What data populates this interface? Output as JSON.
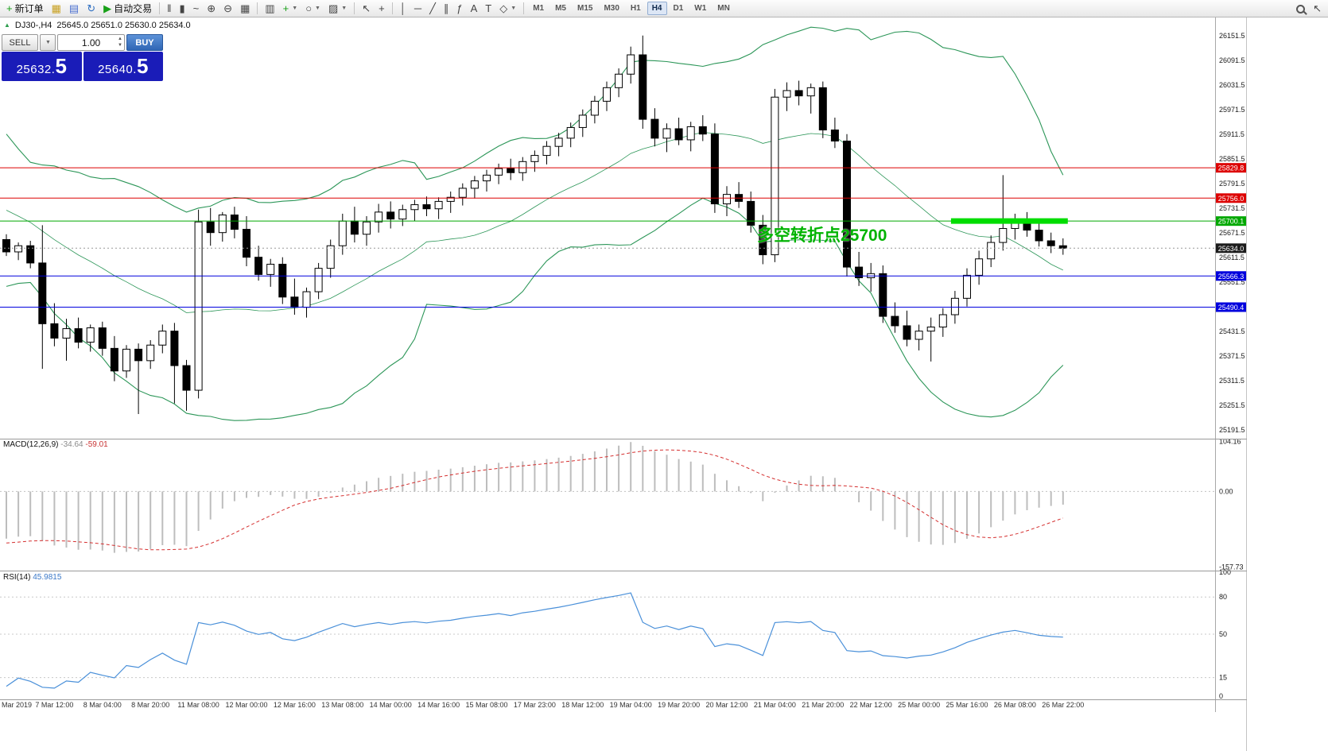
{
  "colors": {
    "red": "#dd0000",
    "green": "#00a800",
    "blue": "#0000dd",
    "black_tag": "#1c1c1c",
    "band": "#2c9658",
    "rsi_line": "#4a90d9",
    "macd_hist": "#bdbdbd",
    "macd_signal": "#d53030",
    "annotation": "#00b300",
    "highlight": "#00dd00",
    "candle_up": "#ffffff",
    "candle_down": "#000000",
    "price_panel": "#1a1cb8",
    "scale_text": "#1a1a1a",
    "axis_text": "#333333",
    "separator": "#9a9a9a"
  },
  "toolbar": {
    "groups": [
      [
        {
          "name": "new-order-button",
          "glyph": "+",
          "glyph_color": "#18a018",
          "label": "新订单"
        },
        {
          "name": "chart-window-icon",
          "glyph": "▦",
          "glyph_color": "#c8a020"
        },
        {
          "name": "profiles-icon",
          "glyph": "▤",
          "glyph_color": "#4a6fd0"
        },
        {
          "name": "refresh-icon",
          "glyph": "↻",
          "glyph_color": "#2e6fc2"
        },
        {
          "name": "autotrading-button",
          "glyph": "▶",
          "glyph_color": "#18a018",
          "label": "自动交易"
        }
      ],
      [
        {
          "name": "bar-chart-icon",
          "glyph": "‖"
        },
        {
          "name": "candlestick-chart-icon",
          "glyph": "▮"
        },
        {
          "name": "line-chart-icon",
          "glyph": "~"
        },
        {
          "name": "zoom-in-icon",
          "glyph": "⊕"
        },
        {
          "name": "zoom-out-icon",
          "glyph": "⊖"
        },
        {
          "name": "tile-windows-icon",
          "glyph": "▦"
        }
      ],
      [
        {
          "name": "arrange-windows-icon",
          "glyph": "▥"
        },
        {
          "name": "indicators-icon",
          "glyph": "+",
          "glyph_color": "#18a018",
          "dropdown": true
        },
        {
          "name": "periods-icon",
          "glyph": "○",
          "dropdown": true
        },
        {
          "name": "templates-icon",
          "glyph": "▨",
          "dropdown": true
        }
      ],
      [
        {
          "name": "cursor-icon",
          "glyph": "↖"
        },
        {
          "name": "crosshair-icon",
          "glyph": "+"
        }
      ],
      [
        {
          "name": "vertical-line-icon",
          "glyph": "│"
        },
        {
          "name": "horizontal-line-icon",
          "glyph": "─"
        },
        {
          "name": "trendline-icon",
          "glyph": "╱"
        },
        {
          "name": "channel-icon",
          "glyph": "∥"
        },
        {
          "name": "fibonacci-icon",
          "glyph": "ƒ"
        },
        {
          "name": "text-icon",
          "glyph": "A"
        },
        {
          "name": "text-label-icon",
          "glyph": "T"
        },
        {
          "name": "shapes-icon",
          "glyph": "◇",
          "dropdown": true
        }
      ]
    ],
    "timeframes": [
      "M1",
      "M5",
      "M15",
      "M30",
      "H1",
      "H4",
      "D1",
      "W1",
      "MN"
    ],
    "active_timeframe": "H4",
    "right_icons": [
      {
        "name": "search-icon"
      },
      {
        "name": "quick-nav-icon",
        "glyph": "↖"
      }
    ]
  },
  "chart_header": {
    "symbol": "DJ30-,H4",
    "ohlc": "25645.0 25651.0 25630.0 25634.0"
  },
  "one_click": {
    "sell_label": "SELL",
    "buy_label": "BUY",
    "volume": "1.00",
    "sell_price": "25632.",
    "sell_price_big": "5",
    "buy_price": "25640.",
    "buy_price_big": "5"
  },
  "annotation": {
    "text": "多空转折点25700"
  },
  "hlines": [
    {
      "price": 25829.8,
      "label": "25829.8",
      "color": "red"
    },
    {
      "price": 25756.0,
      "label": "25756.0",
      "color": "red"
    },
    {
      "price": 25700.1,
      "label": "25700.1",
      "color": "green"
    },
    {
      "price": 25566.3,
      "label": "25566.3",
      "color": "blue"
    },
    {
      "price": 25490.4,
      "label": "25490.4",
      "color": "blue"
    }
  ],
  "current_price": {
    "price": 25634.0,
    "label": "25634.0"
  },
  "highlight_segment": {
    "price": 25700.1,
    "from_candle": 79,
    "to_candle": 88
  },
  "price_scale": [
    "26151.5",
    "26091.5",
    "26031.5",
    "25971.5",
    "25911.5",
    "25851.5",
    "25791.5",
    "25731.5",
    "25671.5",
    "25611.5",
    "25551.5",
    "25491.5",
    "25431.5",
    "25371.5",
    "25311.5",
    "25251.5",
    "25191.5"
  ],
  "macd": {
    "label": "MACD(12,26,9)",
    "value_main": "-34.64",
    "value_signal": "-59.01",
    "scale": [
      {
        "text": "104.16",
        "value": 104.16
      },
      {
        "text": "0.00",
        "value": 0
      },
      {
        "text": "-157.73",
        "value": -157.73
      }
    ]
  },
  "rsi": {
    "label": "RSI(14)",
    "value": "45.9815",
    "scale": [
      {
        "text": "100",
        "value": 100
      },
      {
        "text": "80",
        "value": 80
      },
      {
        "text": "50",
        "value": 50
      },
      {
        "text": "15",
        "value": 15
      },
      {
        "text": "0",
        "value": 0
      }
    ],
    "levels": [
      80,
      50,
      15
    ]
  },
  "time_axis": [
    "Mar 2019",
    "7 Mar 12:00",
    "8 Mar 04:00",
    "8 Mar 20:00",
    "11 Mar 08:00",
    "12 Mar 00:00",
    "12 Mar 16:00",
    "13 Mar 08:00",
    "14 Mar 00:00",
    "14 Mar 16:00",
    "15 Mar 08:00",
    "17 Mar 23:00",
    "18 Mar 12:00",
    "19 Mar 04:00",
    "19 Mar 20:00",
    "20 Mar 12:00",
    "21 Mar 04:00",
    "21 Mar 20:00",
    "22 Mar 12:00",
    "25 Mar 00:00",
    "25 Mar 16:00",
    "26 Mar 08:00",
    "26 Mar 22:00"
  ],
  "chart_data": {
    "type": "candlestick",
    "symbol": "DJ30-",
    "timeframe": "H4",
    "price_range": [
      25170,
      26196
    ],
    "overlays": [
      "Bollinger Bands (green)",
      "MACD(12,26,9)",
      "RSI(14)"
    ],
    "pre_closes": [
      26140,
      26150,
      26130,
      26145,
      26120,
      26135,
      26110,
      26125,
      26100,
      26115,
      26090,
      26105,
      26080,
      26050,
      26020,
      25990,
      25960,
      25930,
      25900,
      25870,
      25840,
      25810,
      25780,
      25750,
      25720,
      25700,
      25690,
      25680,
      25670,
      25665,
      25660,
      25655,
      25650,
      25648,
      25645,
      25642
    ],
    "candles": [
      [
        25655,
        25668,
        25615,
        25625
      ],
      [
        25625,
        25648,
        25605,
        25640
      ],
      [
        25640,
        25652,
        25585,
        25598
      ],
      [
        25598,
        25690,
        25340,
        25450
      ],
      [
        25450,
        25500,
        25395,
        25415
      ],
      [
        25415,
        25462,
        25360,
        25438
      ],
      [
        25438,
        25465,
        25390,
        25405
      ],
      [
        25405,
        25448,
        25382,
        25440
      ],
      [
        25440,
        25455,
        25372,
        25390
      ],
      [
        25390,
        25420,
        25310,
        25335
      ],
      [
        25335,
        25398,
        25318,
        25388
      ],
      [
        25388,
        25402,
        25230,
        25360
      ],
      [
        25360,
        25410,
        25340,
        25398
      ],
      [
        25398,
        25448,
        25378,
        25432
      ],
      [
        25432,
        25452,
        25256,
        25348
      ],
      [
        25348,
        25362,
        25238,
        25288
      ],
      [
        25288,
        25728,
        25268,
        25698
      ],
      [
        25698,
        25732,
        25640,
        25672
      ],
      [
        25672,
        25722,
        25650,
        25715
      ],
      [
        25715,
        25735,
        25658,
        25680
      ],
      [
        25680,
        25712,
        25590,
        25612
      ],
      [
        25612,
        25640,
        25555,
        25570
      ],
      [
        25570,
        25608,
        25540,
        25595
      ],
      [
        25595,
        25612,
        25498,
        25515
      ],
      [
        25515,
        25560,
        25472,
        25490
      ],
      [
        25490,
        25538,
        25465,
        25528
      ],
      [
        25528,
        25598,
        25510,
        25585
      ],
      [
        25585,
        25655,
        25562,
        25640
      ],
      [
        25640,
        25718,
        25618,
        25700
      ],
      [
        25700,
        25735,
        25648,
        25668
      ],
      [
        25668,
        25712,
        25640,
        25698
      ],
      [
        25698,
        25742,
        25672,
        25722
      ],
      [
        25722,
        25748,
        25682,
        25705
      ],
      [
        25705,
        25740,
        25688,
        25728
      ],
      [
        25728,
        25752,
        25700,
        25740
      ],
      [
        25740,
        25760,
        25712,
        25730
      ],
      [
        25730,
        25758,
        25705,
        25748
      ],
      [
        25748,
        25772,
        25720,
        25758
      ],
      [
        25758,
        25792,
        25738,
        25780
      ],
      [
        25780,
        25810,
        25755,
        25798
      ],
      [
        25798,
        25825,
        25772,
        25812
      ],
      [
        25812,
        25840,
        25790,
        25828
      ],
      [
        25828,
        25852,
        25800,
        25818
      ],
      [
        25818,
        25856,
        25798,
        25845
      ],
      [
        25845,
        25872,
        25820,
        25860
      ],
      [
        25860,
        25895,
        25838,
        25882
      ],
      [
        25882,
        25915,
        25858,
        25902
      ],
      [
        25902,
        25940,
        25880,
        25928
      ],
      [
        25928,
        25972,
        25905,
        25958
      ],
      [
        25958,
        26005,
        25938,
        25992
      ],
      [
        25992,
        26040,
        25968,
        26025
      ],
      [
        26025,
        26072,
        26002,
        26058
      ],
      [
        26058,
        26125,
        26035,
        26105
      ],
      [
        26105,
        26152,
        25925,
        25948
      ],
      [
        25948,
        25975,
        25882,
        25902
      ],
      [
        25902,
        25938,
        25868,
        25925
      ],
      [
        25925,
        25952,
        25885,
        25898
      ],
      [
        25898,
        25942,
        25870,
        25930
      ],
      [
        25930,
        25958,
        25895,
        25912
      ],
      [
        25912,
        25938,
        25720,
        25742
      ],
      [
        25742,
        25785,
        25712,
        25765
      ],
      [
        25765,
        25795,
        25732,
        25748
      ],
      [
        25748,
        25772,
        25672,
        25690
      ],
      [
        25690,
        25715,
        25595,
        25618
      ],
      [
        25618,
        26022,
        25600,
        26002
      ],
      [
        26002,
        26038,
        25968,
        26018
      ],
      [
        26018,
        26042,
        25982,
        26005
      ],
      [
        26005,
        26035,
        25962,
        26025
      ],
      [
        26025,
        26040,
        25902,
        25922
      ],
      [
        25922,
        25952,
        25878,
        25895
      ],
      [
        25895,
        25912,
        25565,
        25588
      ],
      [
        25588,
        25625,
        25542,
        25562
      ],
      [
        25562,
        25598,
        25528,
        25572
      ],
      [
        25572,
        25592,
        25452,
        25468
      ],
      [
        25468,
        25502,
        25428,
        25445
      ],
      [
        25445,
        25482,
        25395,
        25412
      ],
      [
        25412,
        25448,
        25385,
        25432
      ],
      [
        25432,
        25465,
        25358,
        25442
      ],
      [
        25442,
        25488,
        25418,
        25472
      ],
      [
        25472,
        25530,
        25450,
        25512
      ],
      [
        25512,
        25585,
        25492,
        25568
      ],
      [
        25568,
        25628,
        25545,
        25608
      ],
      [
        25608,
        25665,
        25588,
        25648
      ],
      [
        25648,
        25812,
        25628,
        25682
      ],
      [
        25682,
        25718,
        25655,
        25702
      ],
      [
        25702,
        25722,
        25662,
        25678
      ],
      [
        25678,
        25698,
        25638,
        25652
      ],
      [
        25652,
        25672,
        25622,
        25640
      ],
      [
        25640,
        25658,
        25618,
        25634
      ]
    ]
  }
}
